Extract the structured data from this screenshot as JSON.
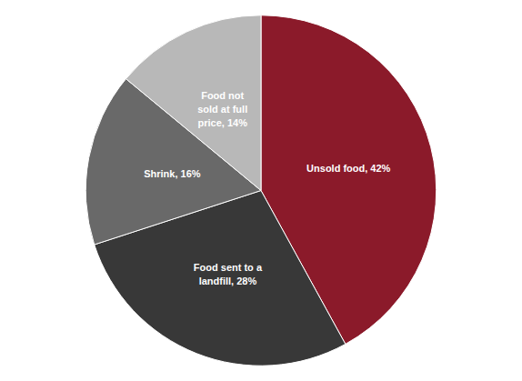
{
  "chart_data": {
    "type": "pie",
    "categories": [
      "Unsold food, 42%",
      "Food sent to a\nlandfill, 28%",
      "Shrink, 16%",
      "Food not\nsold at full\nprice, 14%"
    ],
    "values": [
      42,
      28,
      16,
      14
    ],
    "colors": [
      "#8B1A2A",
      "#383838",
      "#696969",
      "#B8B8B8"
    ]
  }
}
